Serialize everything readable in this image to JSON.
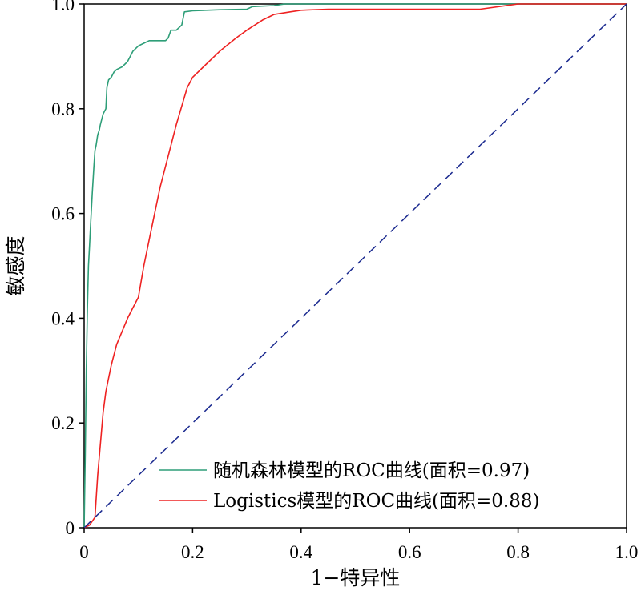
{
  "chart_data": {
    "type": "line",
    "xlabel": "1−特异性",
    "ylabel": "敏感度",
    "xlim": [
      0,
      1
    ],
    "ylim": [
      0,
      1
    ],
    "x_ticks": [
      "0",
      "0.2",
      "0.4",
      "0.6",
      "0.8",
      "1.0"
    ],
    "y_ticks": [
      "0",
      "0.2",
      "0.4",
      "0.6",
      "0.8",
      "1.0"
    ],
    "grid": false,
    "legend_position": "bottom-right",
    "series": [
      {
        "name": "随机森林模型的ROC曲线(面积=0.97)",
        "color": "#2e9e78",
        "style": "solid",
        "x": [
          0,
          0.002,
          0.004,
          0.006,
          0.008,
          0.01,
          0.012,
          0.015,
          0.018,
          0.02,
          0.022,
          0.025,
          0.028,
          0.03,
          0.035,
          0.04,
          0.042,
          0.045,
          0.05,
          0.055,
          0.06,
          0.07,
          0.08,
          0.09,
          0.1,
          0.11,
          0.12,
          0.13,
          0.14,
          0.15,
          0.155,
          0.16,
          0.17,
          0.18,
          0.185,
          0.2,
          0.25,
          0.3,
          0.31,
          0.35,
          0.37,
          0.4,
          0.6,
          0.8,
          1.0
        ],
        "y": [
          0,
          0.14,
          0.3,
          0.42,
          0.5,
          0.54,
          0.58,
          0.64,
          0.69,
          0.72,
          0.73,
          0.75,
          0.76,
          0.77,
          0.79,
          0.8,
          0.84,
          0.855,
          0.86,
          0.87,
          0.875,
          0.88,
          0.89,
          0.91,
          0.92,
          0.925,
          0.93,
          0.93,
          0.93,
          0.93,
          0.935,
          0.95,
          0.95,
          0.96,
          0.985,
          0.987,
          0.989,
          0.99,
          0.995,
          0.997,
          1.0,
          1.0,
          1.0,
          1.0,
          1.0
        ]
      },
      {
        "name": "Logistics模型的ROC曲线(面积=0.88)",
        "color": "#ee2222",
        "style": "solid",
        "x": [
          0,
          0.01,
          0.02,
          0.025,
          0.03,
          0.035,
          0.04,
          0.05,
          0.06,
          0.07,
          0.08,
          0.09,
          0.1,
          0.11,
          0.12,
          0.13,
          0.14,
          0.15,
          0.17,
          0.19,
          0.2,
          0.22,
          0.25,
          0.28,
          0.3,
          0.33,
          0.35,
          0.38,
          0.4,
          0.45,
          0.5,
          0.6,
          0.7,
          0.73,
          0.8,
          0.85,
          0.9,
          1.0
        ],
        "y": [
          0,
          0.005,
          0.02,
          0.1,
          0.16,
          0.22,
          0.26,
          0.31,
          0.35,
          0.375,
          0.4,
          0.42,
          0.44,
          0.5,
          0.55,
          0.6,
          0.65,
          0.69,
          0.77,
          0.84,
          0.86,
          0.88,
          0.91,
          0.935,
          0.95,
          0.97,
          0.98,
          0.985,
          0.988,
          0.99,
          0.99,
          0.99,
          0.99,
          0.99,
          1.0,
          1.0,
          1.0,
          1.0
        ]
      },
      {
        "name": "",
        "color": "#1b2a8f",
        "style": "dashed",
        "x": [
          0,
          1
        ],
        "y": [
          0,
          1
        ]
      }
    ]
  }
}
